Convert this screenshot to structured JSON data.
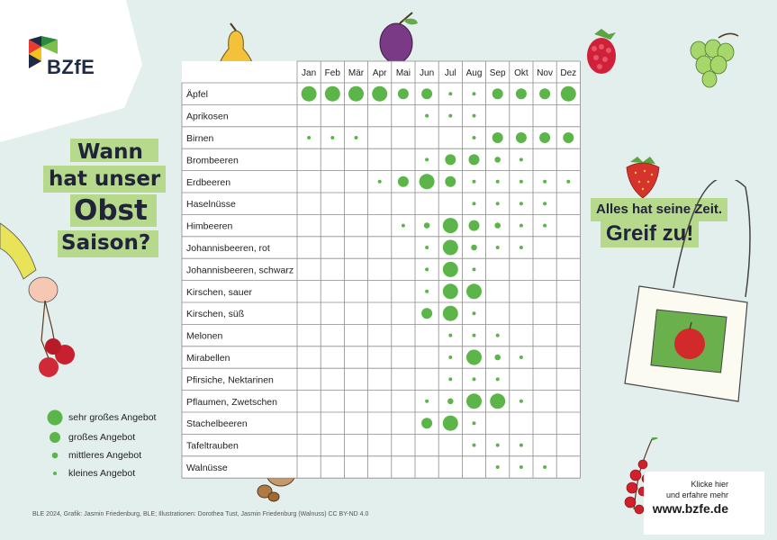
{
  "brand": {
    "logo_text": "BZfE"
  },
  "headline": {
    "line1": "Wann",
    "line2": "hat unser",
    "line3": "Obst",
    "line4": "Saison?"
  },
  "slogan": {
    "line1": "Alles hat seine Zeit.",
    "line2": "Greif zu!"
  },
  "legend": [
    {
      "level": 4,
      "label": "sehr großes Angebot"
    },
    {
      "level": 3,
      "label": "großes Angebot"
    },
    {
      "level": 2,
      "label": "mittleres Angebot"
    },
    {
      "level": 1,
      "label": "kleines Angebot"
    }
  ],
  "credit": "BLE 2024, Grafik: Jasmin Friedenburg, BLE; Illustrationen: Dorothea Tust, Jasmin Friedenburg (Walnuss) CC BY-ND 4.0",
  "cta": {
    "line1": "Klicke hier",
    "line2": "und erfahre mehr",
    "url": "www.bzfe.de"
  },
  "colors": {
    "background": "#e3efed",
    "dot": "#5cb548",
    "highlight": "#b7d98b",
    "grid": "#8c8c8c"
  },
  "chart_data": {
    "type": "table",
    "value_scale": "0 = kein Angebot, 1 = kleines, 2 = mittleres, 3 = großes, 4 = sehr großes Angebot",
    "months": [
      "Jan",
      "Feb",
      "Mär",
      "Apr",
      "Mai",
      "Jun",
      "Jul",
      "Aug",
      "Sep",
      "Okt",
      "Nov",
      "Dez"
    ],
    "rows": [
      {
        "name": "Äpfel",
        "values": [
          4,
          4,
          4,
          4,
          3,
          3,
          1,
          1,
          3,
          3,
          3,
          4
        ]
      },
      {
        "name": "Aprikosen",
        "values": [
          0,
          0,
          0,
          0,
          0,
          1,
          1,
          1,
          0,
          0,
          0,
          0
        ]
      },
      {
        "name": "Birnen",
        "values": [
          1,
          1,
          1,
          0,
          0,
          0,
          0,
          1,
          3,
          3,
          3,
          3
        ]
      },
      {
        "name": "Brombeeren",
        "values": [
          0,
          0,
          0,
          0,
          0,
          1,
          3,
          3,
          2,
          1,
          0,
          0
        ]
      },
      {
        "name": "Erdbeeren",
        "values": [
          0,
          0,
          0,
          1,
          3,
          4,
          3,
          1,
          1,
          1,
          1,
          1
        ]
      },
      {
        "name": "Haselnüsse",
        "values": [
          0,
          0,
          0,
          0,
          0,
          0,
          0,
          1,
          1,
          1,
          1,
          0
        ]
      },
      {
        "name": "Himbeeren",
        "values": [
          0,
          0,
          0,
          0,
          1,
          2,
          4,
          3,
          2,
          1,
          1,
          0
        ]
      },
      {
        "name": "Johannisbeeren, rot",
        "values": [
          0,
          0,
          0,
          0,
          0,
          1,
          4,
          2,
          1,
          1,
          0,
          0
        ]
      },
      {
        "name": "Johannisbeeren, schwarz",
        "values": [
          0,
          0,
          0,
          0,
          0,
          1,
          4,
          1,
          0,
          0,
          0,
          0
        ]
      },
      {
        "name": "Kirschen, sauer",
        "values": [
          0,
          0,
          0,
          0,
          0,
          1,
          4,
          4,
          0,
          0,
          0,
          0
        ]
      },
      {
        "name": "Kirschen, süß",
        "values": [
          0,
          0,
          0,
          0,
          0,
          3,
          4,
          1,
          0,
          0,
          0,
          0
        ]
      },
      {
        "name": "Melonen",
        "values": [
          0,
          0,
          0,
          0,
          0,
          0,
          1,
          1,
          1,
          0,
          0,
          0
        ]
      },
      {
        "name": "Mirabellen",
        "values": [
          0,
          0,
          0,
          0,
          0,
          0,
          1,
          4,
          2,
          1,
          0,
          0
        ]
      },
      {
        "name": "Pfirsiche, Nektarinen",
        "values": [
          0,
          0,
          0,
          0,
          0,
          0,
          1,
          1,
          1,
          0,
          0,
          0
        ]
      },
      {
        "name": "Pflaumen, Zwetschen",
        "values": [
          0,
          0,
          0,
          0,
          0,
          1,
          2,
          4,
          4,
          1,
          0,
          0
        ]
      },
      {
        "name": "Stachelbeeren",
        "values": [
          0,
          0,
          0,
          0,
          0,
          3,
          4,
          1,
          0,
          0,
          0,
          0
        ]
      },
      {
        "name": "Tafeltrauben",
        "values": [
          0,
          0,
          0,
          0,
          0,
          0,
          0,
          1,
          1,
          1,
          0,
          0
        ]
      },
      {
        "name": "Walnüsse",
        "values": [
          0,
          0,
          0,
          0,
          0,
          0,
          0,
          0,
          1,
          1,
          1,
          0
        ]
      }
    ]
  }
}
